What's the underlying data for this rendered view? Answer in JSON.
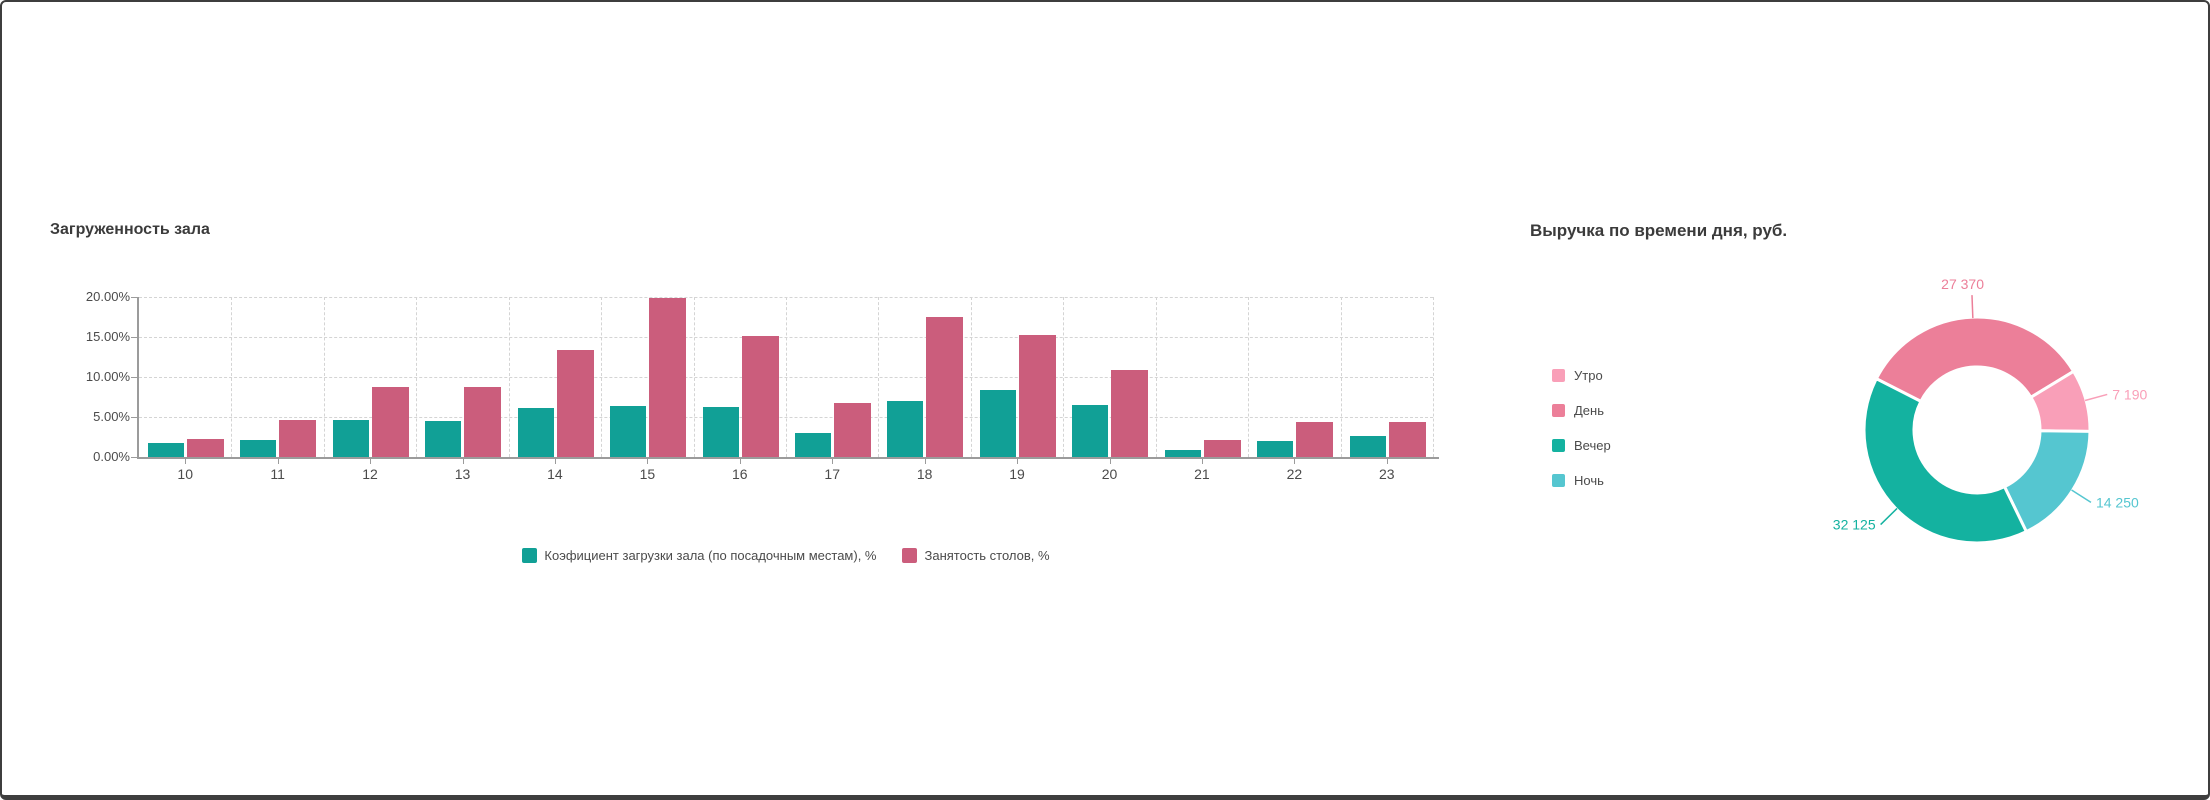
{
  "window": {
    "background": "#ffffff",
    "border_color": "#3e3e3e"
  },
  "chart_data": [
    {
      "type": "bar",
      "title": "Загруженность зала",
      "categories": [
        "10",
        "11",
        "12",
        "13",
        "14",
        "15",
        "16",
        "17",
        "18",
        "19",
        "20",
        "21",
        "22",
        "23"
      ],
      "series": [
        {
          "name": "Коэфициент загрузки зала (по посадочным местам), %",
          "color": "#11a096",
          "values": [
            1.8,
            2.1,
            4.6,
            4.5,
            6.1,
            6.4,
            6.3,
            3.0,
            7.0,
            8.4,
            6.5,
            0.9,
            2.0,
            2.6
          ]
        },
        {
          "name": "Занятость столов, %",
          "color": "#cb5d7c",
          "values": [
            2.3,
            4.6,
            8.7,
            8.7,
            13.4,
            19.9,
            15.1,
            6.7,
            17.5,
            15.2,
            10.9,
            2.1,
            4.4,
            4.4
          ]
        }
      ],
      "xlabel": "",
      "ylabel": "",
      "ylim": [
        0,
        20
      ],
      "y_tick_labels": [
        "20.00%",
        "15.00%",
        "10.00%",
        "5.00%",
        "0.00%"
      ],
      "grid": "dashed",
      "legend_position": "bottom"
    },
    {
      "type": "pie",
      "donut": true,
      "title": "Выручка по времени дня, руб.",
      "legend_position": "left",
      "legend_order": [
        "Утро",
        "День",
        "Вечер",
        "Ночь"
      ],
      "slices": [
        {
          "name": "Утро",
          "value": 7190,
          "label": "7 190",
          "color": "#f99fb8"
        },
        {
          "name": "День",
          "value": 27370,
          "label": "27 370",
          "color": "#ec7f99"
        },
        {
          "name": "Вечер",
          "value": 32125,
          "label": "32 125",
          "color": "#14b2a0"
        },
        {
          "name": "Ночь",
          "value": 14250,
          "label": "14 250",
          "color": "#55c6d0"
        }
      ],
      "clockwise_order": [
        "День",
        "Утро",
        "Ночь",
        "Вечер"
      ],
      "start_angle_deg": 297
    }
  ]
}
